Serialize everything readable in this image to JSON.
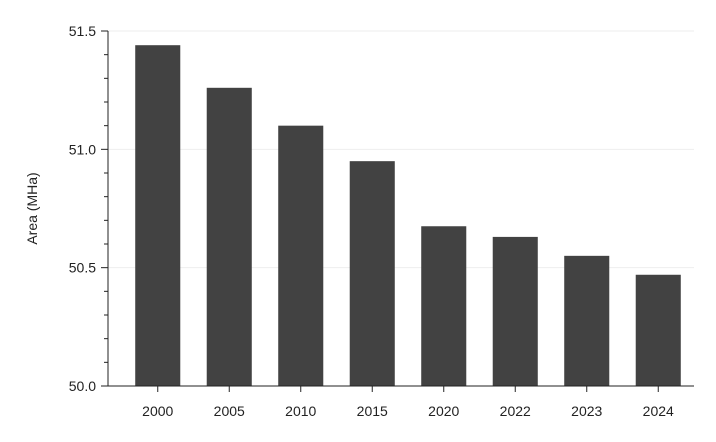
{
  "chart_data": {
    "type": "bar",
    "title": "",
    "xlabel": "",
    "ylabel": "Area (MHa)",
    "categories": [
      "2000",
      "2005",
      "2010",
      "2015",
      "2020",
      "2022",
      "2023",
      "2024"
    ],
    "values": [
      51.44,
      51.26,
      51.1,
      50.95,
      50.675,
      50.63,
      50.55,
      50.47
    ],
    "ylim": [
      50.0,
      51.5
    ],
    "yticks": [
      "50.0",
      "50.5",
      "51.0",
      "51.5"
    ],
    "grid": true,
    "colors": {
      "bar": "#424242",
      "axis": "#222222",
      "grid": "#eeeeee"
    }
  }
}
